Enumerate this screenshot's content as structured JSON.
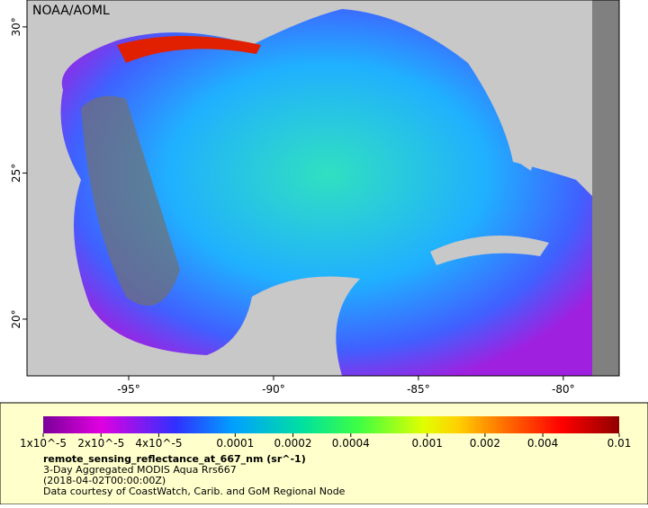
{
  "map": {
    "label": "NOAA/AOML",
    "lonlim": [
      -98.51,
      -78.07
    ],
    "latlim": [
      18.06,
      30.92
    ],
    "lon_ticks": [
      {
        "value": -95,
        "label": "-95°"
      },
      {
        "value": -90,
        "label": "-90°"
      },
      {
        "value": -85,
        "label": "-85°"
      },
      {
        "value": -80,
        "label": "-80°"
      }
    ],
    "lat_ticks": [
      {
        "value": 30,
        "label": "30°"
      },
      {
        "value": 25,
        "label": "25°"
      },
      {
        "value": 20,
        "label": "20°"
      }
    ]
  },
  "colorbar": {
    "log_scale": true,
    "range": [
      1e-05,
      0.01
    ],
    "ticks": [
      {
        "value": 1e-05,
        "label": "1x10^-5"
      },
      {
        "value": 2e-05,
        "label": "2x10^-5"
      },
      {
        "value": 4e-05,
        "label": "4x10^-5"
      },
      0.0001,
      0.0002,
      0.0004,
      0.001,
      0.002,
      0.004,
      0.01
    ]
  },
  "caption": {
    "variable": "remote_sensing_reflectance_at_667_nm (sr^-1)",
    "lines": [
      "3-Day Aggregated MODIS Aqua Rrs667",
      "(2018-04-02T00:00:00Z)",
      "Data courtesy of CoastWatch, Carib. and GoM Regional Node"
    ]
  }
}
